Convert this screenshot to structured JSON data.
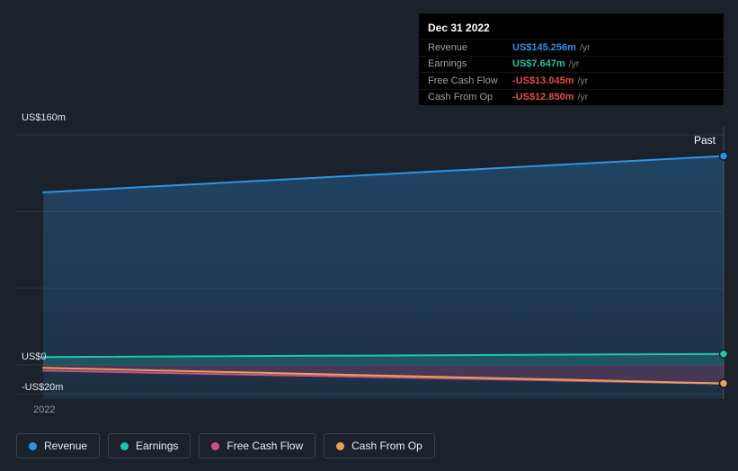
{
  "colors": {
    "background": "#1b222c",
    "grid": "#2b3441",
    "revenue": "#2e93e5",
    "earnings": "#23c2ae",
    "free_cash_flow": "#c85184",
    "cash_from_op": "#e9a158",
    "negative_value": "#e64c45",
    "tooltip_bg": "#000000"
  },
  "tooltip": {
    "date": "Dec 31 2022",
    "rows": [
      {
        "label": "Revenue",
        "value": "US$145.256m",
        "suffix": "/yr",
        "color": "#2e93e5"
      },
      {
        "label": "Earnings",
        "value": "US$7.647m",
        "suffix": "/yr",
        "color": "#23c2ae"
      },
      {
        "label": "Free Cash Flow",
        "value": "-US$13.045m",
        "suffix": "/yr",
        "color": "#e64c45"
      },
      {
        "label": "Cash From Op",
        "value": "-US$12.850m",
        "suffix": "/yr",
        "color": "#e64c45"
      }
    ]
  },
  "chart_data": {
    "type": "area",
    "title": "",
    "y_unit": "US$m",
    "ylim": [
      -24,
      166
    ],
    "grid": true,
    "legend_position": "bottom-left",
    "x_axis_labels": [
      "2022"
    ],
    "annotations": [
      "Past"
    ],
    "yticks": [
      {
        "value": 160,
        "label": "US$160m"
      },
      {
        "value": 106.67,
        "label": ""
      },
      {
        "value": 53.33,
        "label": ""
      },
      {
        "value": 0,
        "label": "US$0"
      },
      {
        "value": -20,
        "label": "-US$20m"
      }
    ],
    "series": [
      {
        "name": "Revenue",
        "color": "#2e93e5",
        "fill": "to-bottom",
        "values": [
          120,
          145.256
        ]
      },
      {
        "name": "Earnings",
        "color": "#23c2ae",
        "fill": "to-zero",
        "values": [
          5.5,
          7.647
        ]
      },
      {
        "name": "Free Cash Flow",
        "color": "#c85184",
        "fill": "to-zero",
        "values": [
          -4,
          -13.045
        ]
      },
      {
        "name": "Cash From Op",
        "color": "#e9a158",
        "fill": "none",
        "values": [
          -2,
          -12.85
        ]
      }
    ],
    "end_values": {
      "revenue": 145.256,
      "earnings": 7.647,
      "free_cash_flow": -13.045,
      "cash_from_op": -12.85
    }
  },
  "legend": [
    {
      "label": "Revenue",
      "color": "#2e93e5"
    },
    {
      "label": "Earnings",
      "color": "#23c2ae"
    },
    {
      "label": "Free Cash Flow",
      "color": "#c85184"
    },
    {
      "label": "Cash From Op",
      "color": "#e9a158"
    }
  ]
}
